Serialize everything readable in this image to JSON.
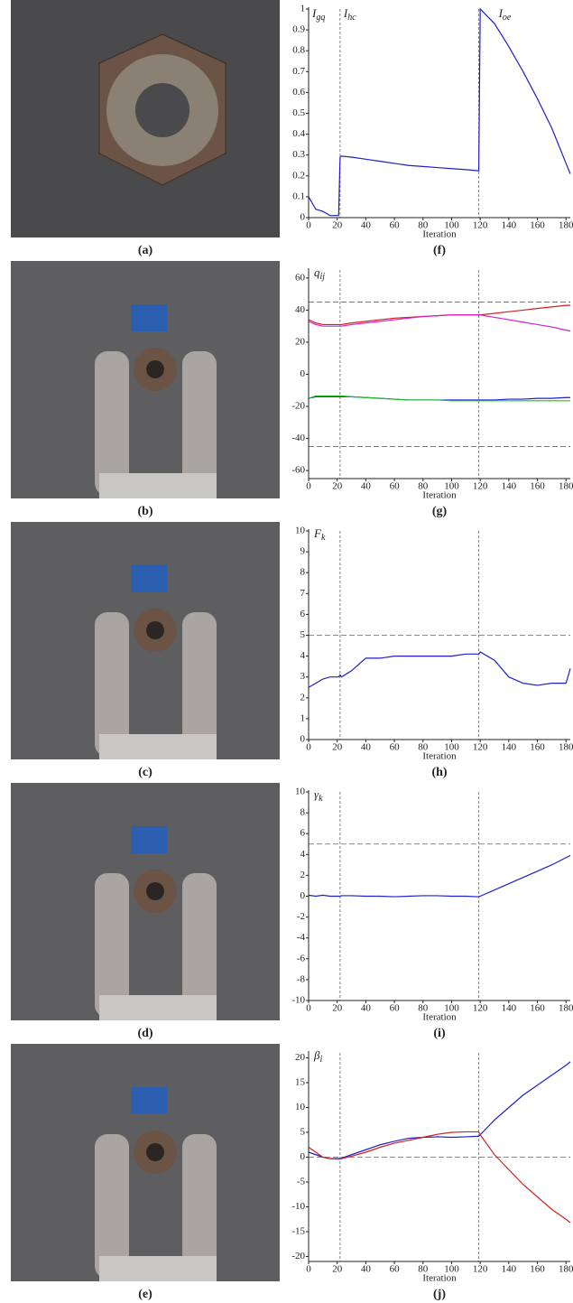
{
  "photos": [
    {
      "caption": "(a)"
    },
    {
      "caption": "(b)"
    },
    {
      "caption": "(c)"
    },
    {
      "caption": "(d)"
    },
    {
      "caption": "(e)"
    }
  ],
  "chart_data": [
    {
      "type": "line",
      "caption": "(f)",
      "x_label": "Iteration",
      "annotations": [
        {
          "text": "I",
          "sub": "gq"
        },
        {
          "text": "I",
          "sub": "hc"
        },
        {
          "text": "I",
          "sub": "oe"
        }
      ],
      "xlim": [
        0,
        183
      ],
      "xticks": [
        0,
        20,
        40,
        60,
        80,
        100,
        120,
        140,
        160,
        180
      ],
      "ylim": [
        0,
        1
      ],
      "yticks": [
        0,
        0.1,
        0.2,
        0.3,
        0.4,
        0.5,
        0.6,
        0.7,
        0.8,
        0.9,
        1
      ],
      "vlines": [
        22,
        119
      ],
      "hlines": [],
      "x": [
        0,
        5,
        10,
        15,
        20,
        21,
        22,
        23,
        30,
        40,
        50,
        60,
        70,
        80,
        90,
        100,
        110,
        118,
        119,
        120,
        130,
        140,
        150,
        160,
        170,
        180,
        183
      ],
      "series": [
        {
          "color": "#1f1fcc",
          "values": [
            0.1,
            0.04,
            0.03,
            0.01,
            0.01,
            0.01,
            0.29,
            0.295,
            0.29,
            0.28,
            0.27,
            0.26,
            0.25,
            0.245,
            0.24,
            0.235,
            0.23,
            0.225,
            0.225,
            1.0,
            0.93,
            0.82,
            0.7,
            0.57,
            0.43,
            0.26,
            0.21
          ]
        }
      ]
    },
    {
      "type": "line",
      "caption": "(g)",
      "x_label": "Iteration",
      "y_label": {
        "text": "q",
        "sub": "ij"
      },
      "xlim": [
        0,
        183
      ],
      "xticks": [
        0,
        20,
        40,
        60,
        80,
        100,
        120,
        140,
        160,
        180
      ],
      "ylim": [
        -65,
        65
      ],
      "yticks": [
        -60,
        -40,
        -20,
        0,
        20,
        40,
        60
      ],
      "vlines": [
        22,
        119
      ],
      "hlines": [
        45,
        -45
      ],
      "x": [
        0,
        5,
        10,
        15,
        20,
        21,
        22,
        23,
        30,
        40,
        50,
        60,
        70,
        80,
        90,
        100,
        110,
        118,
        119,
        120,
        130,
        140,
        150,
        160,
        170,
        180,
        183
      ],
      "series": [
        {
          "color": "#d42020",
          "values": [
            34,
            32,
            31,
            31,
            31,
            31,
            31,
            31,
            32,
            33,
            34,
            35,
            35.5,
            36,
            36.5,
            37,
            37,
            37,
            37,
            37,
            38,
            39,
            40,
            41,
            42,
            43,
            43
          ]
        },
        {
          "color": "#d020d0",
          "values": [
            33,
            31,
            30,
            30,
            30,
            30,
            30,
            30,
            31,
            32,
            33,
            34,
            35,
            36,
            36.5,
            37,
            37,
            37,
            37,
            37,
            35.5,
            34,
            32.5,
            31,
            29.5,
            27.5,
            27
          ]
        },
        {
          "color": "#1f1fcc",
          "values": [
            -15,
            -14,
            -14,
            -14,
            -14,
            -14,
            -14,
            -14,
            -14,
            -14.5,
            -15,
            -15.5,
            -16,
            -16,
            -16,
            -16,
            -16,
            -16,
            -16,
            -16,
            -16,
            -15.5,
            -15.5,
            -15,
            -15,
            -14.5,
            -14.5
          ]
        },
        {
          "color": "#20c020",
          "values": [
            -15,
            -13.5,
            -13.5,
            -13.5,
            -13.5,
            -13.5,
            -13.5,
            -13.5,
            -14,
            -14.5,
            -15,
            -15.5,
            -16,
            -16,
            -16,
            -16.5,
            -16.5,
            -16.5,
            -16.5,
            -16.5,
            -16.5,
            -16.5,
            -16.5,
            -16.5,
            -16.5,
            -16.5,
            -16.5
          ]
        }
      ]
    },
    {
      "type": "line",
      "caption": "(h)",
      "x_label": "Iteration",
      "y_label": {
        "text": "F",
        "sub": "k"
      },
      "xlim": [
        0,
        183
      ],
      "xticks": [
        0,
        20,
        40,
        60,
        80,
        100,
        120,
        140,
        160,
        180
      ],
      "ylim": [
        0,
        10
      ],
      "yticks": [
        0,
        1,
        2,
        3,
        4,
        5,
        6,
        7,
        8,
        9,
        10
      ],
      "vlines": [
        22,
        119
      ],
      "hlines": [
        5
      ],
      "x": [
        0,
        5,
        10,
        15,
        20,
        21,
        22,
        23,
        30,
        40,
        50,
        60,
        70,
        80,
        90,
        100,
        110,
        118,
        119,
        120,
        130,
        140,
        150,
        160,
        170,
        180,
        183
      ],
      "series": [
        {
          "color": "#1f1fcc",
          "values": [
            2.5,
            2.7,
            2.9,
            3.0,
            3.0,
            3.0,
            3.1,
            3.0,
            3.3,
            3.9,
            3.9,
            4.0,
            4.0,
            4.0,
            4.0,
            4.0,
            4.1,
            4.1,
            4.1,
            4.2,
            3.8,
            3.0,
            2.7,
            2.6,
            2.7,
            2.7,
            3.4
          ]
        }
      ]
    },
    {
      "type": "line",
      "caption": "(i)",
      "x_label": "Iteration",
      "y_label": {
        "text": "γ",
        "sub": "k"
      },
      "xlim": [
        0,
        183
      ],
      "xticks": [
        0,
        20,
        40,
        60,
        80,
        100,
        120,
        140,
        160,
        180
      ],
      "ylim": [
        -10,
        10
      ],
      "yticks": [
        -10,
        -8,
        -6,
        -4,
        -2,
        0,
        2,
        4,
        6,
        8,
        10
      ],
      "vlines": [
        22,
        119
      ],
      "hlines": [
        5
      ],
      "x": [
        0,
        5,
        10,
        15,
        20,
        21,
        22,
        23,
        30,
        40,
        50,
        60,
        70,
        80,
        90,
        100,
        110,
        118,
        119,
        120,
        130,
        140,
        150,
        160,
        170,
        180,
        183
      ],
      "series": [
        {
          "color": "#1f1fcc",
          "values": [
            0.1,
            0,
            0.1,
            0,
            0,
            0,
            0,
            0.05,
            0.05,
            0,
            0,
            -0.05,
            0,
            0.05,
            0.05,
            0,
            0,
            -0.05,
            -0.05,
            0,
            0.6,
            1.2,
            1.8,
            2.4,
            3.0,
            3.7,
            3.9
          ]
        }
      ]
    },
    {
      "type": "line",
      "caption": "(j)",
      "x_label": "Iteration",
      "y_label": {
        "text": "β",
        "sub": "i"
      },
      "xlim": [
        0,
        183
      ],
      "xticks": [
        0,
        20,
        40,
        60,
        80,
        100,
        120,
        140,
        160,
        180
      ],
      "ylim": [
        -21,
        21
      ],
      "yticks": [
        -20,
        -15,
        -10,
        -5,
        0,
        5,
        10,
        15,
        20
      ],
      "vlines": [
        22,
        119
      ],
      "hlines": [
        0
      ],
      "x": [
        0,
        5,
        10,
        15,
        20,
        21,
        22,
        23,
        30,
        40,
        50,
        60,
        70,
        80,
        90,
        100,
        110,
        118,
        119,
        120,
        130,
        140,
        150,
        160,
        170,
        180,
        183
      ],
      "series": [
        {
          "color": "#1f1fcc",
          "values": [
            1,
            0.5,
            0,
            -0.3,
            -0.3,
            -0.3,
            -0.3,
            -0.2,
            0.5,
            1.5,
            2.5,
            3.2,
            3.8,
            4,
            4.1,
            4,
            4.1,
            4.2,
            4.2,
            4.5,
            7.5,
            10,
            12.5,
            14.5,
            16.5,
            18.5,
            19.2
          ]
        },
        {
          "color": "#d42020",
          "values": [
            2,
            1,
            0,
            -0.3,
            -0.4,
            -0.4,
            -0.4,
            -0.3,
            0.2,
            1,
            2,
            2.8,
            3.4,
            4,
            4.6,
            5,
            5.1,
            5.1,
            5.1,
            4.5,
            0.5,
            -2.5,
            -5.5,
            -8,
            -10.5,
            -12.5,
            -13.2
          ]
        }
      ]
    }
  ]
}
